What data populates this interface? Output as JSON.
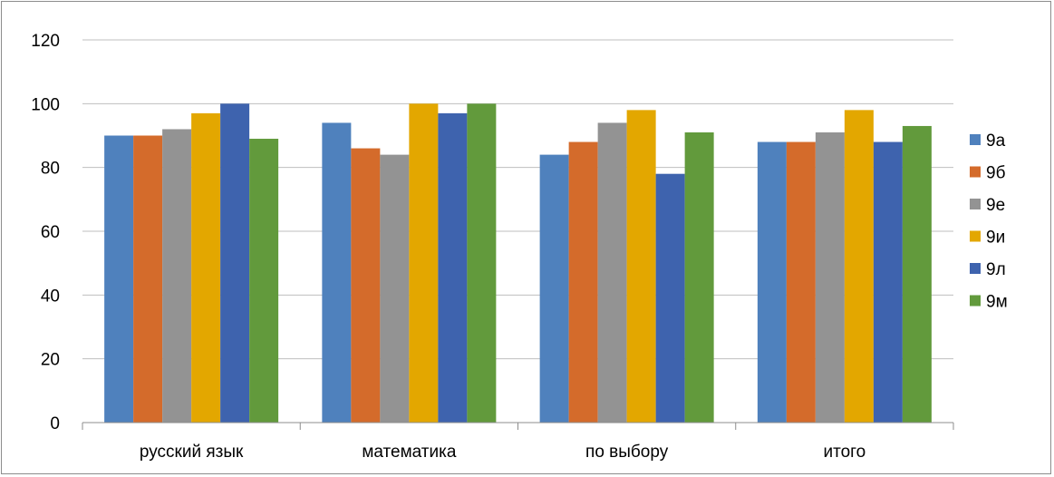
{
  "chart_data": {
    "type": "bar",
    "categories": [
      "русский язык",
      "математика",
      "по выбору",
      "итого"
    ],
    "series": [
      {
        "name": "9а",
        "color": "#4f81bd",
        "values": [
          90,
          94,
          84,
          88
        ]
      },
      {
        "name": "9б",
        "color": "#d46b2b",
        "values": [
          90,
          86,
          88,
          88
        ]
      },
      {
        "name": "9е",
        "color": "#939393",
        "values": [
          92,
          84,
          94,
          91
        ]
      },
      {
        "name": "9и",
        "color": "#e3a700",
        "values": [
          97,
          100,
          98,
          98
        ]
      },
      {
        "name": "9л",
        "color": "#3e63ae",
        "values": [
          100,
          97,
          78,
          88
        ]
      },
      {
        "name": "9м",
        "color": "#629a3c",
        "values": [
          89,
          100,
          91,
          93
        ]
      }
    ],
    "yticks": [
      "0",
      "20",
      "40",
      "60",
      "80",
      "100",
      "120"
    ],
    "ylim": [
      0,
      120
    ],
    "grid": true,
    "legend": "right"
  }
}
